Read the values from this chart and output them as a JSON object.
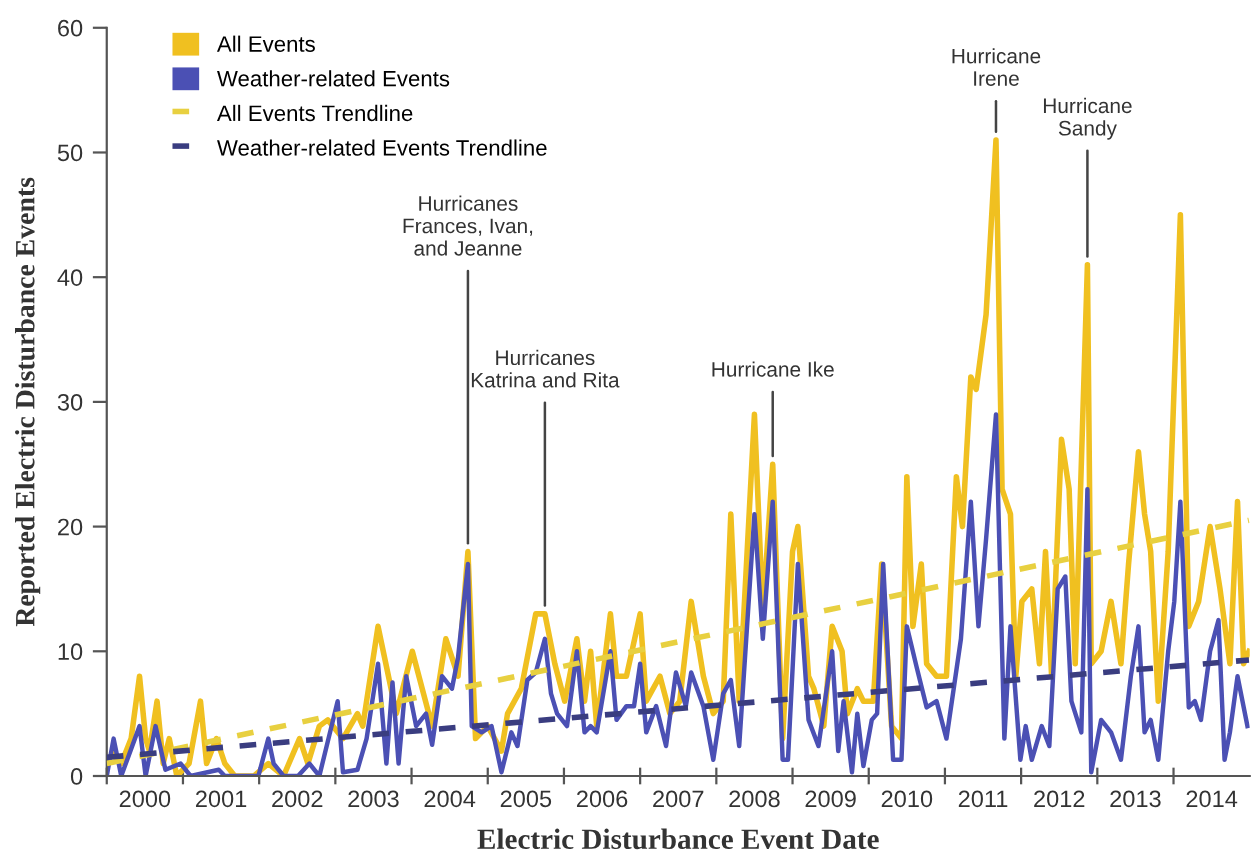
{
  "chart_data": {
    "type": "line",
    "xlabel": "Electric Disturbance Event Date",
    "ylabel": "Reported Electric Disturbance Events",
    "xlim": [
      2000,
      2015
    ],
    "ylim": [
      0,
      60
    ],
    "yticks": [
      0,
      10,
      20,
      30,
      40,
      50,
      60
    ],
    "xticks": [
      {
        "value": 2000,
        "label": null
      },
      {
        "value": 2000.5,
        "label": "2000"
      },
      {
        "value": 2001,
        "label": null
      },
      {
        "value": 2001.5,
        "label": "2001"
      },
      {
        "value": 2002,
        "label": null
      },
      {
        "value": 2002.5,
        "label": "2002"
      },
      {
        "value": 2003,
        "label": null
      },
      {
        "value": 2003.5,
        "label": "2003"
      },
      {
        "value": 2004,
        "label": null
      },
      {
        "value": 2004.5,
        "label": "2004"
      },
      {
        "value": 2005,
        "label": null
      },
      {
        "value": 2005.5,
        "label": "2005"
      },
      {
        "value": 2006,
        "label": null
      },
      {
        "value": 2006.5,
        "label": "2006"
      },
      {
        "value": 2007,
        "label": null
      },
      {
        "value": 2007.5,
        "label": "2007"
      },
      {
        "value": 2008,
        "label": null
      },
      {
        "value": 2008.5,
        "label": "2008"
      },
      {
        "value": 2009,
        "label": null
      },
      {
        "value": 2009.5,
        "label": "2009"
      },
      {
        "value": 2010,
        "label": null
      },
      {
        "value": 2010.5,
        "label": "2010"
      },
      {
        "value": 2011,
        "label": null
      },
      {
        "value": 2011.5,
        "label": "2011"
      },
      {
        "value": 2012,
        "label": null
      },
      {
        "value": 2012.5,
        "label": "2012"
      },
      {
        "value": 2013,
        "label": null
      },
      {
        "value": 2013.5,
        "label": "2013"
      },
      {
        "value": 2014,
        "label": null
      },
      {
        "value": 2014.5,
        "label": "2014"
      }
    ],
    "grid": false,
    "legend": "top left",
    "marker": "none",
    "series": [
      {
        "name": "All Events",
        "color": "#f0c020",
        "line_style": "solid",
        "x": [
          2000.0,
          2000.09,
          2000.19,
          2000.32,
          2000.43,
          2000.51,
          2000.56,
          2000.66,
          2000.74,
          2000.82,
          2000.92,
          2001.08,
          2001.23,
          2001.31,
          2001.44,
          2001.55,
          2001.68,
          2001.93,
          2002.12,
          2002.32,
          2002.53,
          2002.64,
          2002.79,
          2002.9,
          2003.1,
          2003.29,
          2003.36,
          2003.56,
          2003.8,
          2004.01,
          2004.27,
          2004.45,
          2004.61,
          2004.74,
          2004.84,
          2005.0,
          2005.18,
          2005.26,
          2005.44,
          2005.63,
          2005.75,
          2005.88,
          2006.01,
          2006.17,
          2006.27,
          2006.35,
          2006.43,
          2006.61,
          2006.69,
          2006.82,
          2007.0,
          2007.08,
          2007.26,
          2007.39,
          2007.52,
          2007.67,
          2007.83,
          2007.96,
          2008.09,
          2008.19,
          2008.3,
          2008.5,
          2008.61,
          2008.74,
          2008.87,
          2009.0,
          2009.07,
          2009.21,
          2009.28,
          2009.41,
          2009.52,
          2009.65,
          2009.72,
          2009.85,
          2009.93,
          2010.06,
          2010.17,
          2010.3,
          2010.43,
          2010.5,
          2010.58,
          2010.69,
          2010.76,
          2010.89,
          2011.02,
          2011.15,
          2011.23,
          2011.34,
          2011.41,
          2011.54,
          2011.67,
          2011.75,
          2011.86,
          2011.93,
          2012.01,
          2012.14,
          2012.24,
          2012.32,
          2012.4,
          2012.53,
          2012.63,
          2012.71,
          2012.87,
          2012.92,
          2013.05,
          2013.18,
          2013.31,
          2013.41,
          2013.54,
          2013.62,
          2013.7,
          2013.8,
          2013.93,
          2014.09,
          2014.2,
          2014.33,
          2014.48,
          2014.61,
          2014.74,
          2014.84,
          2014.92,
          2014.99
        ],
        "values": [
          1,
          2,
          1,
          3,
          8,
          3,
          2,
          6,
          1,
          3,
          0,
          1,
          6,
          1,
          3,
          1,
          0,
          0,
          1,
          0,
          3,
          1,
          4,
          4.5,
          3,
          5,
          4,
          12,
          5,
          10,
          4,
          11,
          8,
          18,
          3,
          4,
          2,
          5,
          7,
          13,
          13,
          9,
          6,
          11,
          6,
          10,
          4,
          13,
          8,
          8,
          13,
          6,
          8,
          5,
          6,
          14,
          8,
          5,
          6,
          21,
          6,
          29,
          13,
          25,
          3,
          18,
          20,
          8,
          7,
          4,
          12,
          10,
          5,
          7,
          6,
          6,
          17,
          4,
          3,
          24,
          12,
          17,
          9,
          8,
          8,
          24,
          20,
          32,
          31,
          37,
          51,
          23,
          21,
          8,
          14,
          15,
          9,
          18,
          8,
          27,
          23,
          9,
          41,
          9,
          10,
          14,
          9,
          17,
          26,
          21,
          18,
          6,
          18,
          45,
          12,
          14,
          20,
          15,
          9,
          22,
          9,
          10
        ]
      },
      {
        "name": "Weather-related Events",
        "color": "#4b50b4",
        "line_style": "solid",
        "x": [
          2000.0,
          2000.09,
          2000.19,
          2000.43,
          2000.51,
          2000.64,
          2000.77,
          2000.97,
          2001.1,
          2001.47,
          2001.55,
          2001.99,
          2002.12,
          2002.19,
          2002.32,
          2002.51,
          2002.66,
          2002.79,
          2003.03,
          2003.1,
          2003.29,
          2003.41,
          2003.56,
          2003.67,
          2003.75,
          2003.83,
          2003.93,
          2004.06,
          2004.19,
          2004.27,
          2004.4,
          2004.53,
          2004.61,
          2004.74,
          2004.79,
          2004.92,
          2005.05,
          2005.18,
          2005.31,
          2005.39,
          2005.52,
          2005.63,
          2005.75,
          2005.83,
          2005.91,
          2006.04,
          2006.17,
          2006.27,
          2006.35,
          2006.43,
          2006.61,
          2006.69,
          2006.82,
          2006.92,
          2007.0,
          2007.08,
          2007.21,
          2007.34,
          2007.47,
          2007.6,
          2007.67,
          2007.83,
          2007.96,
          2008.09,
          2008.19,
          2008.3,
          2008.5,
          2008.61,
          2008.74,
          2008.87,
          2008.94,
          2009.07,
          2009.21,
          2009.34,
          2009.52,
          2009.6,
          2009.67,
          2009.78,
          2009.85,
          2009.93,
          2010.04,
          2010.11,
          2010.19,
          2010.32,
          2010.43,
          2010.5,
          2010.63,
          2010.76,
          2010.89,
          2011.02,
          2011.21,
          2011.34,
          2011.44,
          2011.54,
          2011.67,
          2011.78,
          2011.86,
          2011.99,
          2012.06,
          2012.14,
          2012.27,
          2012.37,
          2012.48,
          2012.58,
          2012.66,
          2012.79,
          2012.87,
          2012.92,
          2013.05,
          2013.18,
          2013.31,
          2013.44,
          2013.54,
          2013.62,
          2013.7,
          2013.8,
          2013.93,
          2014.01,
          2014.09,
          2014.2,
          2014.28,
          2014.36,
          2014.48,
          2014.59,
          2014.67,
          2014.74,
          2014.84,
          2014.97
        ],
        "values": [
          0,
          3,
          0,
          4,
          0,
          4,
          0.5,
          1,
          0,
          0.5,
          0,
          0,
          3,
          1,
          0,
          0,
          1,
          0,
          6,
          0.3,
          0.5,
          3,
          9,
          1,
          7.5,
          1,
          8,
          4,
          5,
          2.5,
          8,
          7,
          9.5,
          17,
          4,
          3.5,
          4,
          0.3,
          3.5,
          2.4,
          7.7,
          8.3,
          11,
          6.6,
          5,
          4,
          10,
          3.5,
          4,
          3.5,
          10,
          4.5,
          5.6,
          5.6,
          9,
          3.5,
          5.6,
          2.4,
          8.3,
          5.6,
          8.3,
          5.6,
          1.3,
          6.6,
          7.7,
          2.4,
          21,
          11,
          22,
          1.3,
          1.3,
          17,
          4.5,
          2.4,
          10,
          2,
          6,
          0.3,
          5,
          0.8,
          4.5,
          5,
          17,
          1.3,
          1.3,
          12,
          8.7,
          5.5,
          6,
          3,
          11,
          22,
          12,
          19,
          29,
          3,
          12,
          1.3,
          4,
          1.3,
          4,
          2.4,
          15,
          16,
          6,
          3.5,
          23,
          0.3,
          4.5,
          3.5,
          1.3,
          8,
          12,
          3.5,
          4.5,
          1.3,
          10,
          14,
          22,
          5.5,
          6,
          4.5,
          10,
          12.5,
          1.3,
          3.5,
          8,
          4
        ]
      },
      {
        "name": "All Events Trendline",
        "color": "#e8d040",
        "line_style": "dashed",
        "x": [
          2000,
          2014.99
        ],
        "values": [
          1,
          20.5
        ]
      },
      {
        "name": "Weather-related Events Trendline",
        "color": "#3a3d80",
        "line_style": "dashed",
        "x": [
          2000,
          2014.99
        ],
        "values": [
          1.5,
          9.3
        ]
      }
    ],
    "annotations": [
      {
        "text": "Hurricanes\nFrances, Ivan,\nand Jeanne",
        "x": 2004.74,
        "y": 18
      },
      {
        "text": "Hurricanes\nKatrina and Rita",
        "x": 2005.75,
        "y": 13
      },
      {
        "text": "Hurricane Ike",
        "x": 2008.74,
        "y": 25
      },
      {
        "text": "Hurricane\nIrene",
        "x": 2011.67,
        "y": 51
      },
      {
        "text": "Hurricane\nSandy",
        "x": 2012.87,
        "y": 41
      }
    ]
  }
}
